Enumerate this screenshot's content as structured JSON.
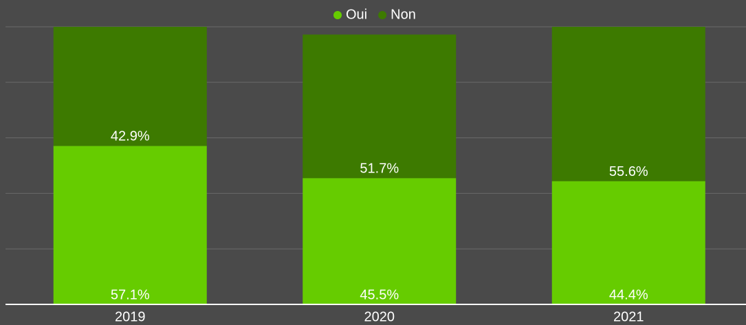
{
  "chart_data": {
    "type": "stacked_bar",
    "categories": [
      "2019",
      "2020",
      "2021"
    ],
    "series": [
      {
        "name": "Oui",
        "color": "#66cc00",
        "values": [
          57.1,
          45.5,
          44.4
        ],
        "value_labels": [
          "57.1%",
          "45.5%",
          "44.4%"
        ]
      },
      {
        "name": "Non",
        "color": "#3d7a00",
        "values": [
          42.9,
          51.7,
          55.6
        ],
        "value_labels": [
          "42.9%",
          "51.7%",
          "55.6%"
        ]
      }
    ],
    "ylim": [
      0,
      100
    ],
    "yticks": [
      0,
      20,
      40,
      60,
      80,
      100
    ],
    "grid": true,
    "legend": "top"
  }
}
